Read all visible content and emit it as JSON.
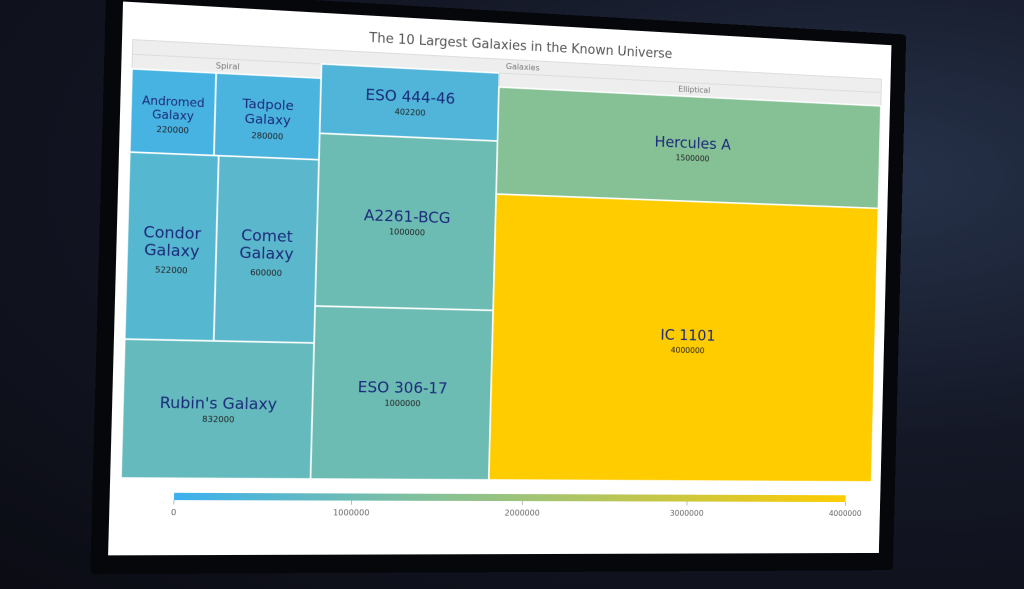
{
  "chart_data": {
    "type": "treemap",
    "title": "The 10 Largest Galaxies in the Known Universe",
    "root": "Galaxies",
    "groups": [
      {
        "name": "Spiral",
        "labels": [
          "Andromed Galaxy",
          "Tadpole Galaxy",
          "Condor Galaxy",
          "Comet Galaxy",
          "Rubin's Galaxy"
        ],
        "values": [
          220000,
          280000,
          522000,
          600000,
          832000
        ]
      },
      {
        "labels": [
          "ESO 444-46",
          "A2261-BCG",
          "ESO 306-17"
        ],
        "values": [
          402200,
          1000000,
          1000000
        ]
      },
      {
        "name": "Elliptical",
        "labels": [
          "Hercules A",
          "IC 1101"
        ],
        "values": [
          1500000,
          4000000
        ]
      }
    ],
    "colorscale": [
      [
        0,
        "#3cb1f0"
      ],
      [
        1500000,
        "#86c196"
      ],
      [
        4000000,
        "#ffcc00"
      ]
    ],
    "clim": [
      0,
      4000000
    ],
    "cticks": [
      0,
      1000000,
      2000000,
      3000000,
      4000000
    ]
  }
}
